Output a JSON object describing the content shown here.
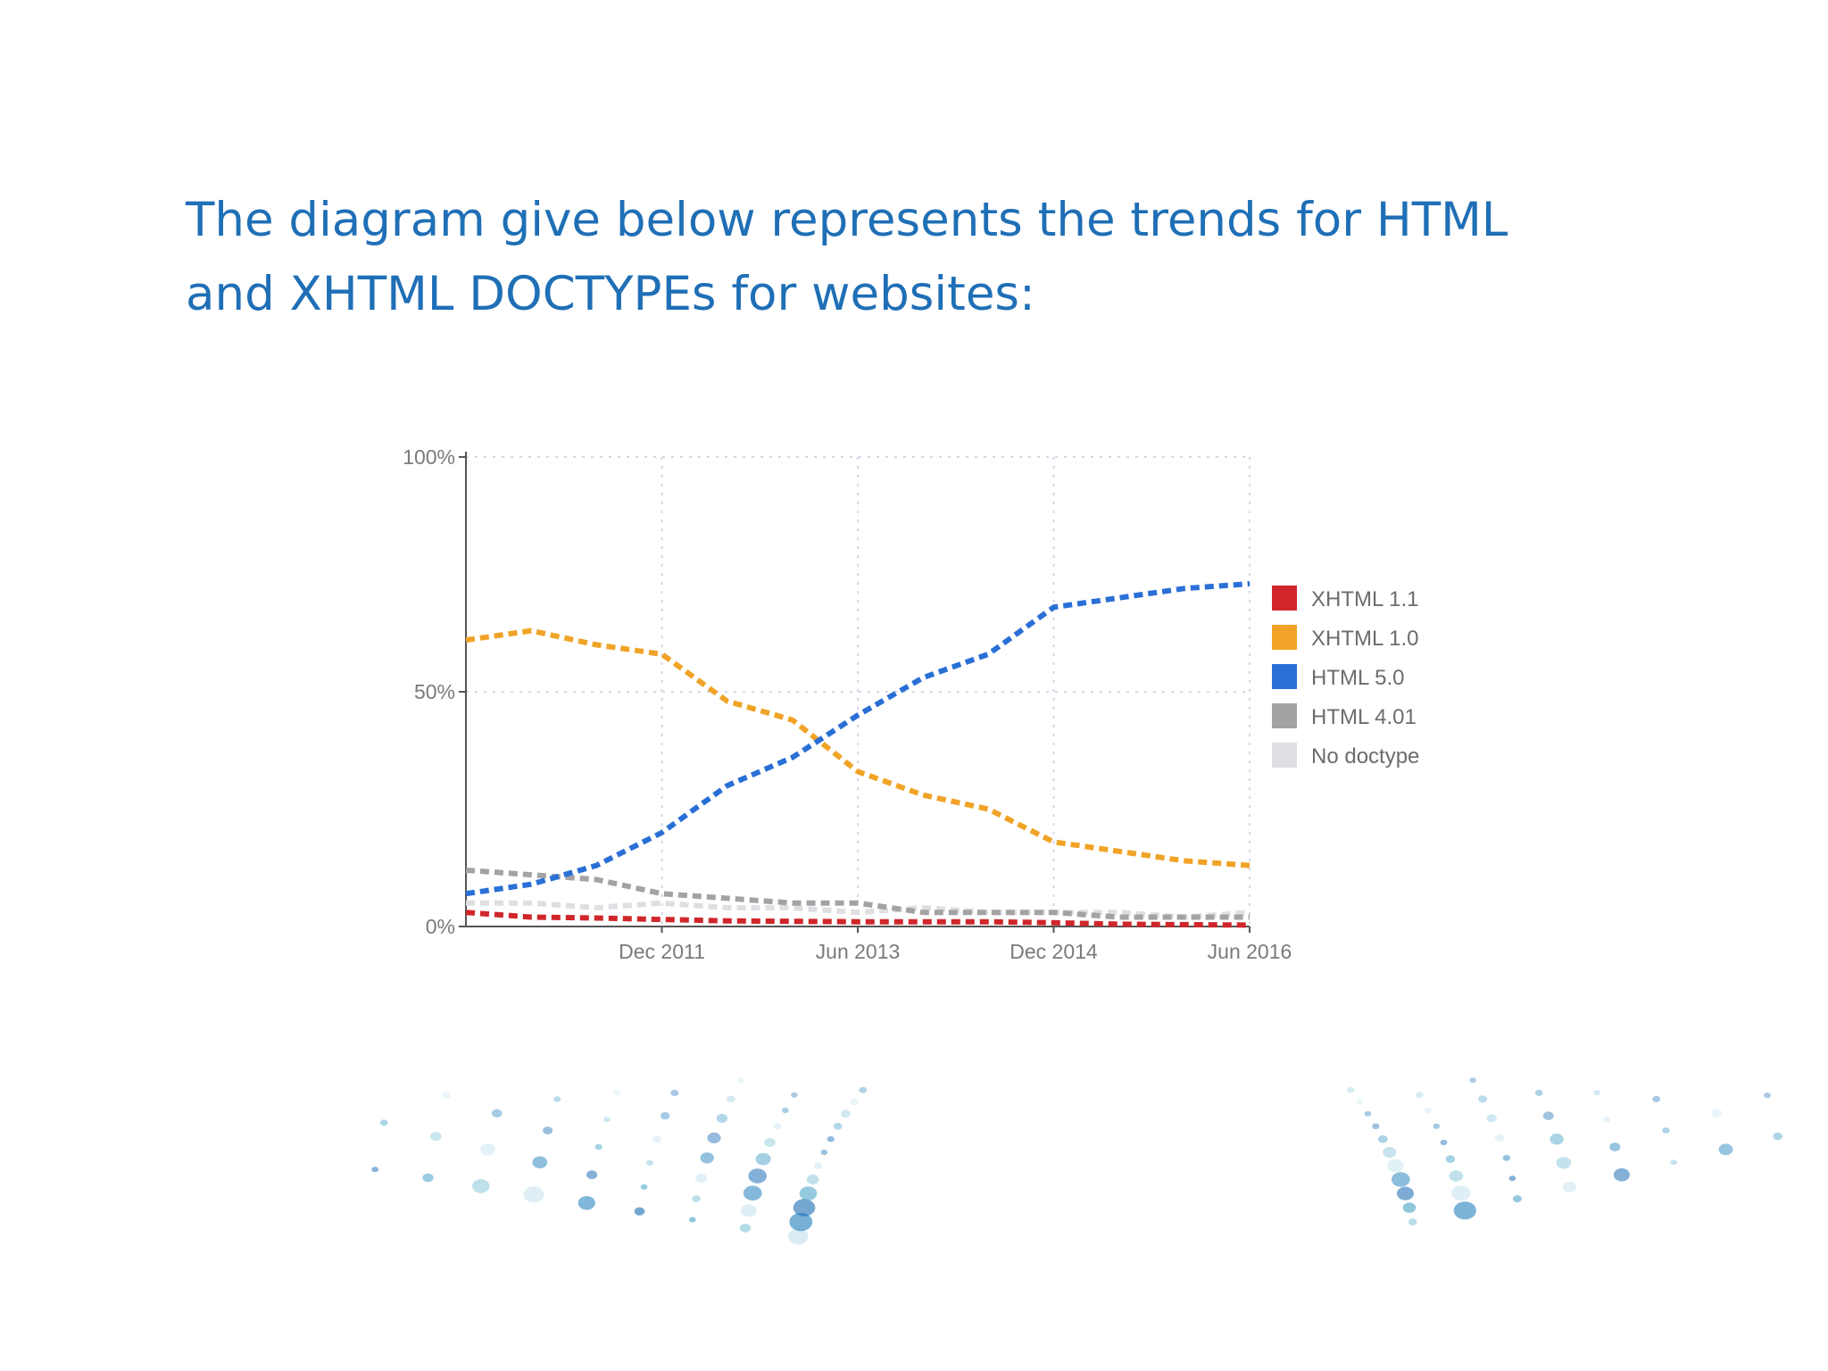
{
  "slide": {
    "title_line1": "The diagram give below represents the trends for HTML",
    "title_line2": "and XHTML DOCTYPEs for websites:"
  },
  "colors": {
    "title": "#1f6fb6",
    "xhtml11": "#d0262b",
    "xhtml10": "#f0a326",
    "html50": "#2a6fd6",
    "html401": "#a3a3a3",
    "nodoctype": "#dfdfe3",
    "grid": "#d6d6e8"
  },
  "chart_data": {
    "type": "line",
    "x": [
      "2010-06",
      "2010-12",
      "2011-06",
      "2011-12",
      "2012-06",
      "2012-12",
      "2013-06",
      "2013-12",
      "2014-06",
      "2014-12",
      "2015-06",
      "2015-12",
      "2016-06"
    ],
    "x_tick_labels": [
      "Dec 2011",
      "Jun 2013",
      "Dec 2014",
      "Jun 2016"
    ],
    "y_tick_labels": [
      "0%",
      "50%",
      "100%"
    ],
    "ylim": [
      0,
      100
    ],
    "grid": true,
    "line_style": "dashed",
    "legend_position": "right",
    "series": [
      {
        "name": "XHTML 1.1",
        "color_key": "xhtml11",
        "values": [
          3,
          2,
          1.8,
          1.5,
          1.2,
          1.1,
          1,
          1,
          1,
          0.8,
          0.5,
          0.4,
          0.3
        ]
      },
      {
        "name": "XHTML 1.0",
        "color_key": "xhtml10",
        "values": [
          61,
          63,
          60,
          58,
          48,
          44,
          33,
          28,
          25,
          18,
          16,
          14,
          13
        ]
      },
      {
        "name": "HTML 5.0",
        "color_key": "html50",
        "values": [
          7,
          9,
          13,
          20,
          30,
          36,
          45,
          53,
          58,
          68,
          70,
          72,
          73
        ]
      },
      {
        "name": "HTML 4.01",
        "color_key": "html401",
        "values": [
          12,
          11,
          10,
          7,
          6,
          5,
          5,
          3,
          3,
          3,
          2,
          2,
          2
        ]
      },
      {
        "name": "No doctype",
        "color_key": "nodoctype",
        "values": [
          5,
          5,
          4,
          5,
          4,
          4,
          3,
          4,
          3,
          3,
          3,
          2,
          3
        ]
      }
    ]
  }
}
